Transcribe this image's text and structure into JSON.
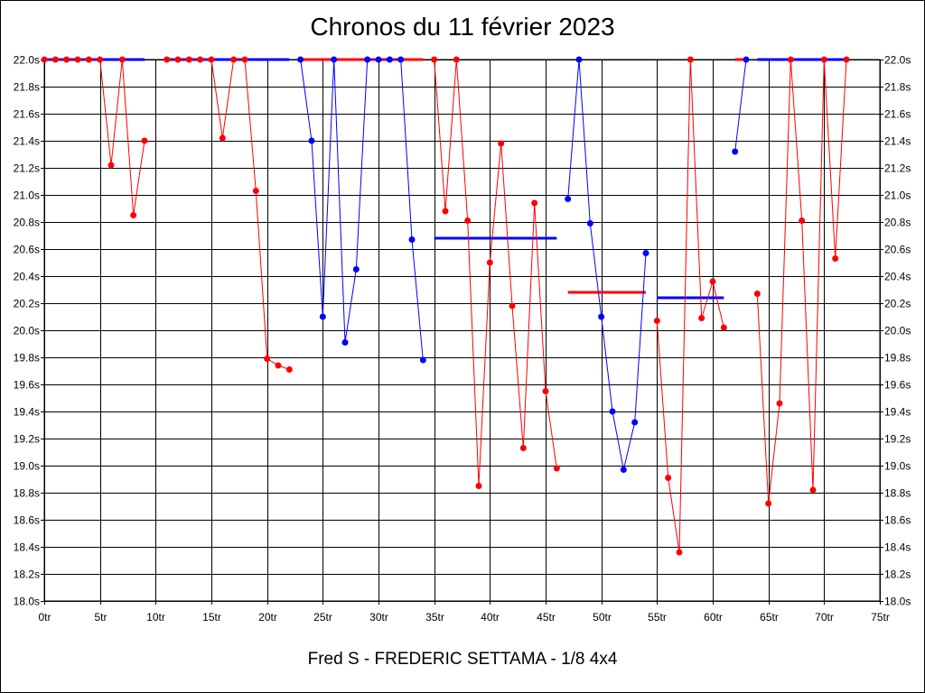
{
  "title": "Chronos du 11 février 2023",
  "footer": "Fred S - FREDERIC SETTAMA - 1/8 4x4",
  "colors": {
    "red": "#ff0000",
    "blue": "#0000ff",
    "grid": "#000000"
  },
  "chart_data": {
    "type": "line",
    "title": "Chronos du 11 février 2023",
    "xlabel": "",
    "ylabel": "",
    "xlim": [
      0,
      75
    ],
    "ylim": [
      18.0,
      22.0
    ],
    "grid": true,
    "x_ticks": [
      "0tr",
      "5tr",
      "10tr",
      "15tr",
      "20tr",
      "25tr",
      "30tr",
      "35tr",
      "40tr",
      "45tr",
      "50tr",
      "55tr",
      "60tr",
      "65tr",
      "70tr",
      "75tr"
    ],
    "y_ticks": [
      "18.0s",
      "18.2s",
      "18.4s",
      "18.6s",
      "18.8s",
      "19.0s",
      "19.2s",
      "19.4s",
      "19.6s",
      "19.8s",
      "20.0s",
      "20.2s",
      "20.4s",
      "20.6s",
      "20.8s",
      "21.0s",
      "21.2s",
      "21.4s",
      "21.6s",
      "21.8s",
      "22.0s"
    ],
    "series": [
      {
        "color": "red",
        "x": [
          0,
          1,
          2,
          3,
          4,
          5,
          6,
          7,
          8,
          9
        ],
        "y": [
          22.0,
          22.0,
          22.0,
          22.0,
          22.0,
          22.0,
          21.22,
          22.0,
          20.85,
          21.4
        ],
        "avg": 22.0,
        "avg_color": "blue"
      },
      {
        "color": "red",
        "x": [
          11,
          12,
          13,
          14,
          15,
          16,
          17,
          18,
          19,
          20,
          21,
          22
        ],
        "y": [
          22.0,
          22.0,
          22.0,
          22.0,
          22.0,
          21.42,
          22.0,
          22.0,
          21.03,
          19.79,
          19.74,
          19.71
        ],
        "avg": 22.0,
        "avg_color": "blue"
      },
      {
        "color": "blue",
        "x": [
          23,
          24,
          25,
          26,
          27,
          28,
          29,
          30,
          31,
          32,
          33,
          34
        ],
        "y": [
          22.0,
          21.4,
          20.1,
          22.0,
          19.91,
          20.45,
          22.0,
          22.0,
          22.0,
          22.0,
          20.67,
          19.78
        ],
        "avg": 22.0,
        "avg_color": "red"
      },
      {
        "color": "red",
        "x": [
          35,
          36,
          37,
          38,
          39,
          40,
          41,
          42,
          43,
          44,
          45,
          46
        ],
        "y": [
          22.0,
          20.88,
          22.0,
          20.81,
          18.85,
          20.5,
          21.38,
          20.18,
          19.13,
          20.94,
          19.55,
          18.98
        ],
        "avg": 20.68,
        "avg_color": "blue"
      },
      {
        "color": "blue",
        "x": [
          47,
          48,
          49,
          50,
          51,
          52,
          53,
          54
        ],
        "y": [
          20.97,
          22.0,
          20.79,
          20.1,
          19.4,
          18.97,
          19.32,
          20.57
        ],
        "avg": 20.28,
        "avg_color": "red"
      },
      {
        "color": "red",
        "x": [
          55,
          56,
          57,
          58,
          59,
          60,
          61
        ],
        "y": [
          20.07,
          18.91,
          18.36,
          22.0,
          20.09,
          20.36,
          20.02
        ],
        "avg": 20.24,
        "avg_color": "blue"
      },
      {
        "color": "blue",
        "x": [
          62,
          63
        ],
        "y": [
          21.32,
          22.0
        ],
        "avg": 22.0,
        "avg_color": "red"
      },
      {
        "color": "red",
        "x": [
          64,
          65,
          66,
          67,
          68,
          69,
          70,
          71,
          72
        ],
        "y": [
          20.27,
          18.72,
          19.46,
          22.0,
          20.81,
          18.82,
          22.0,
          20.53,
          22.0
        ],
        "avg": 22.0,
        "avg_color": "blue"
      }
    ]
  }
}
